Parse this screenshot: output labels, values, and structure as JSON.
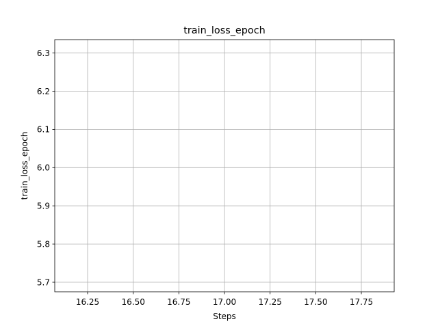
{
  "chart_data": {
    "type": "line",
    "title": "train_loss_epoch",
    "xlabel": "Steps",
    "ylabel": "train_loss_epoch",
    "xlim": [
      16.07,
      17.93
    ],
    "ylim": [
      5.675,
      6.335
    ],
    "xticks": [
      16.25,
      16.5,
      16.75,
      17.0,
      17.25,
      17.5,
      17.75
    ],
    "xtick_labels": [
      "16.25",
      "16.50",
      "16.75",
      "17.00",
      "17.25",
      "17.50",
      "17.75"
    ],
    "yticks": [
      5.7,
      5.8,
      5.9,
      6.0,
      6.1,
      6.2,
      6.3
    ],
    "ytick_labels": [
      "5.7",
      "5.8",
      "5.9",
      "6.0",
      "6.1",
      "6.2",
      "6.3"
    ],
    "grid": true,
    "series": [
      {
        "x": [],
        "y": []
      }
    ],
    "colors": {
      "grid": "#b0b0b0",
      "axis": "#000000",
      "background": "#ffffff"
    }
  }
}
